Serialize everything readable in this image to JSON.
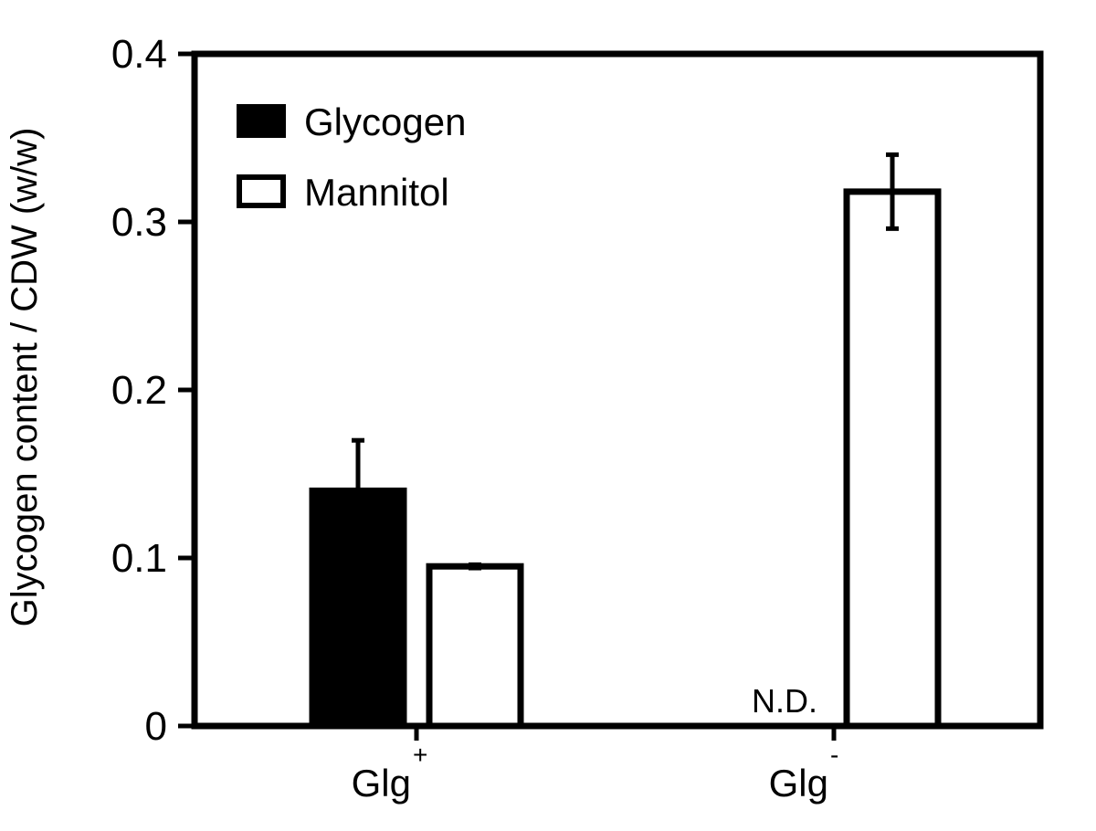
{
  "chart_data": {
    "type": "bar",
    "title": "",
    "xlabel": "",
    "ylabel": "Glycogen content / CDW (w/w)",
    "ylim": [
      0,
      0.4
    ],
    "yticks": [
      0,
      0.1,
      0.2,
      0.3,
      0.4
    ],
    "ytick_labels": [
      "0",
      "0.1",
      "0.2",
      "0.3",
      "0.4"
    ],
    "categories": [
      {
        "base": "Glg",
        "sup": "+"
      },
      {
        "base": "Glg",
        "sup": "-"
      }
    ],
    "series": [
      {
        "name": "Glycogen",
        "color": "#000000",
        "values": [
          0.14,
          null
        ],
        "errors": [
          0.03,
          null
        ]
      },
      {
        "name": "Mannitol",
        "color": "#ffffff",
        "values": [
          0.095,
          0.318
        ],
        "errors": [
          0.001,
          0.022
        ]
      }
    ],
    "legend": {
      "position": "top-left"
    },
    "annotations": [
      {
        "text": "N.D.",
        "category_index": 1,
        "series_index": 0
      }
    ],
    "grid": false
  }
}
